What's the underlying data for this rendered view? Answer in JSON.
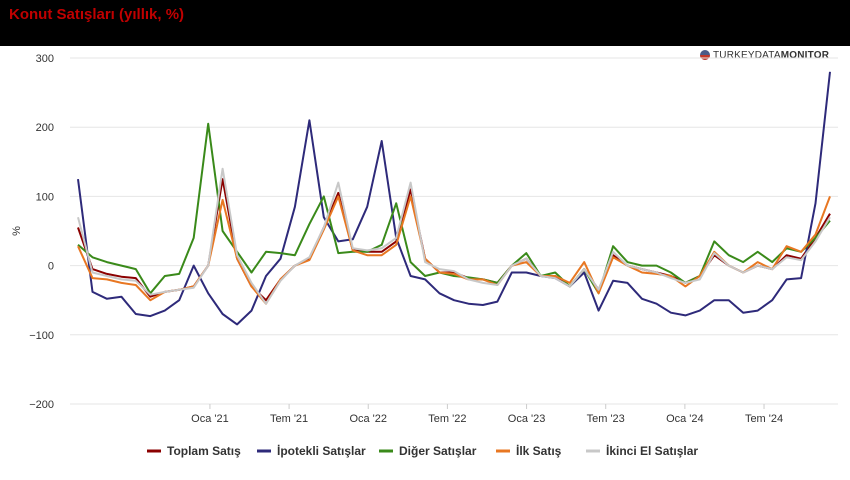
{
  "header": {
    "title": "Konut Satışları (yıllık, %)"
  },
  "brand": {
    "part1": "TURKEYDATA",
    "part2": "MONITOR"
  },
  "chart_data": {
    "type": "line",
    "title": "Konut Satışları (yıllık, %)",
    "ylabel": "%",
    "ylim": [
      -200,
      300
    ],
    "yticks": [
      -200,
      -100,
      0,
      100,
      200,
      300
    ],
    "x_start": "2020-03",
    "x_end": "2024-12",
    "x_ticks": [
      {
        "label": "Oca '21",
        "date": "2021-01"
      },
      {
        "label": "Tem '21",
        "date": "2021-07"
      },
      {
        "label": "Oca '22",
        "date": "2022-01"
      },
      {
        "label": "Tem '22",
        "date": "2022-07"
      },
      {
        "label": "Oca '23",
        "date": "2023-01"
      },
      {
        "label": "Tem '23",
        "date": "2023-07"
      },
      {
        "label": "Oca '24",
        "date": "2024-01"
      },
      {
        "label": "Tem '24",
        "date": "2024-07"
      }
    ],
    "grid": true,
    "legend_position": "bottom",
    "series": [
      {
        "name": "Toplam Satış",
        "color": "#8b0000",
        "values": [
          55,
          -5,
          -12,
          -16,
          -18,
          -45,
          -38,
          -35,
          -30,
          0,
          125,
          10,
          -30,
          -50,
          -20,
          0,
          10,
          55,
          105,
          22,
          20,
          20,
          35,
          110,
          10,
          -10,
          -10,
          -18,
          -20,
          -25,
          0,
          10,
          -15,
          -15,
          -30,
          -5,
          -35,
          15,
          0,
          -5,
          -10,
          -15,
          -25,
          -15,
          15,
          0,
          -10,
          0,
          -5,
          15,
          10,
          40,
          75
        ]
      },
      {
        "name": "İpotekli Satışlar",
        "color": "#2e2a7a",
        "values": [
          125,
          -38,
          -48,
          -45,
          -70,
          -73,
          -65,
          -50,
          0,
          -40,
          -70,
          -85,
          -65,
          -15,
          10,
          85,
          210,
          70,
          35,
          38,
          85,
          180,
          40,
          -15,
          -20,
          -40,
          -50,
          -55,
          -57,
          -52,
          -10,
          -10,
          -15,
          -18,
          -30,
          -10,
          -65,
          -22,
          -25,
          -48,
          -55,
          -68,
          -72,
          -65,
          -50,
          -50,
          -68,
          -65,
          -50,
          -20,
          -18,
          90,
          280
        ]
      },
      {
        "name": "Diğer Satışlar",
        "color": "#3a8a1a",
        "values": [
          30,
          12,
          5,
          0,
          -5,
          -40,
          -15,
          -12,
          40,
          205,
          50,
          20,
          -10,
          20,
          18,
          15,
          60,
          100,
          18,
          20,
          20,
          30,
          90,
          5,
          -15,
          -10,
          -15,
          -17,
          -20,
          -25,
          0,
          18,
          -15,
          -10,
          -30,
          -5,
          -40,
          28,
          5,
          0,
          0,
          -10,
          -25,
          -15,
          35,
          15,
          5,
          20,
          5,
          25,
          20,
          40,
          65
        ]
      },
      {
        "name": "İlk Satış",
        "color": "#e87722",
        "values": [
          28,
          -18,
          -20,
          -25,
          -28,
          -50,
          -38,
          -35,
          -30,
          0,
          95,
          10,
          -30,
          -55,
          -20,
          0,
          8,
          52,
          100,
          22,
          15,
          15,
          30,
          100,
          10,
          -10,
          -12,
          -20,
          -20,
          -28,
          0,
          5,
          -15,
          -15,
          -25,
          5,
          -40,
          12,
          0,
          -10,
          -12,
          -15,
          -30,
          -15,
          20,
          0,
          -10,
          5,
          -5,
          28,
          20,
          45,
          100
        ]
      },
      {
        "name": "İkinci El Satışlar",
        "color": "#c8c8c8",
        "values": [
          70,
          -10,
          -15,
          -20,
          -22,
          -42,
          -38,
          -35,
          -32,
          0,
          140,
          15,
          -25,
          -55,
          -22,
          0,
          12,
          55,
          120,
          25,
          22,
          25,
          40,
          120,
          5,
          -5,
          -8,
          -20,
          -25,
          -28,
          0,
          10,
          -15,
          -18,
          -30,
          -5,
          -35,
          20,
          0,
          -5,
          -10,
          -18,
          -25,
          -20,
          18,
          0,
          -10,
          0,
          -5,
          12,
          8,
          35,
          70
        ]
      }
    ]
  }
}
